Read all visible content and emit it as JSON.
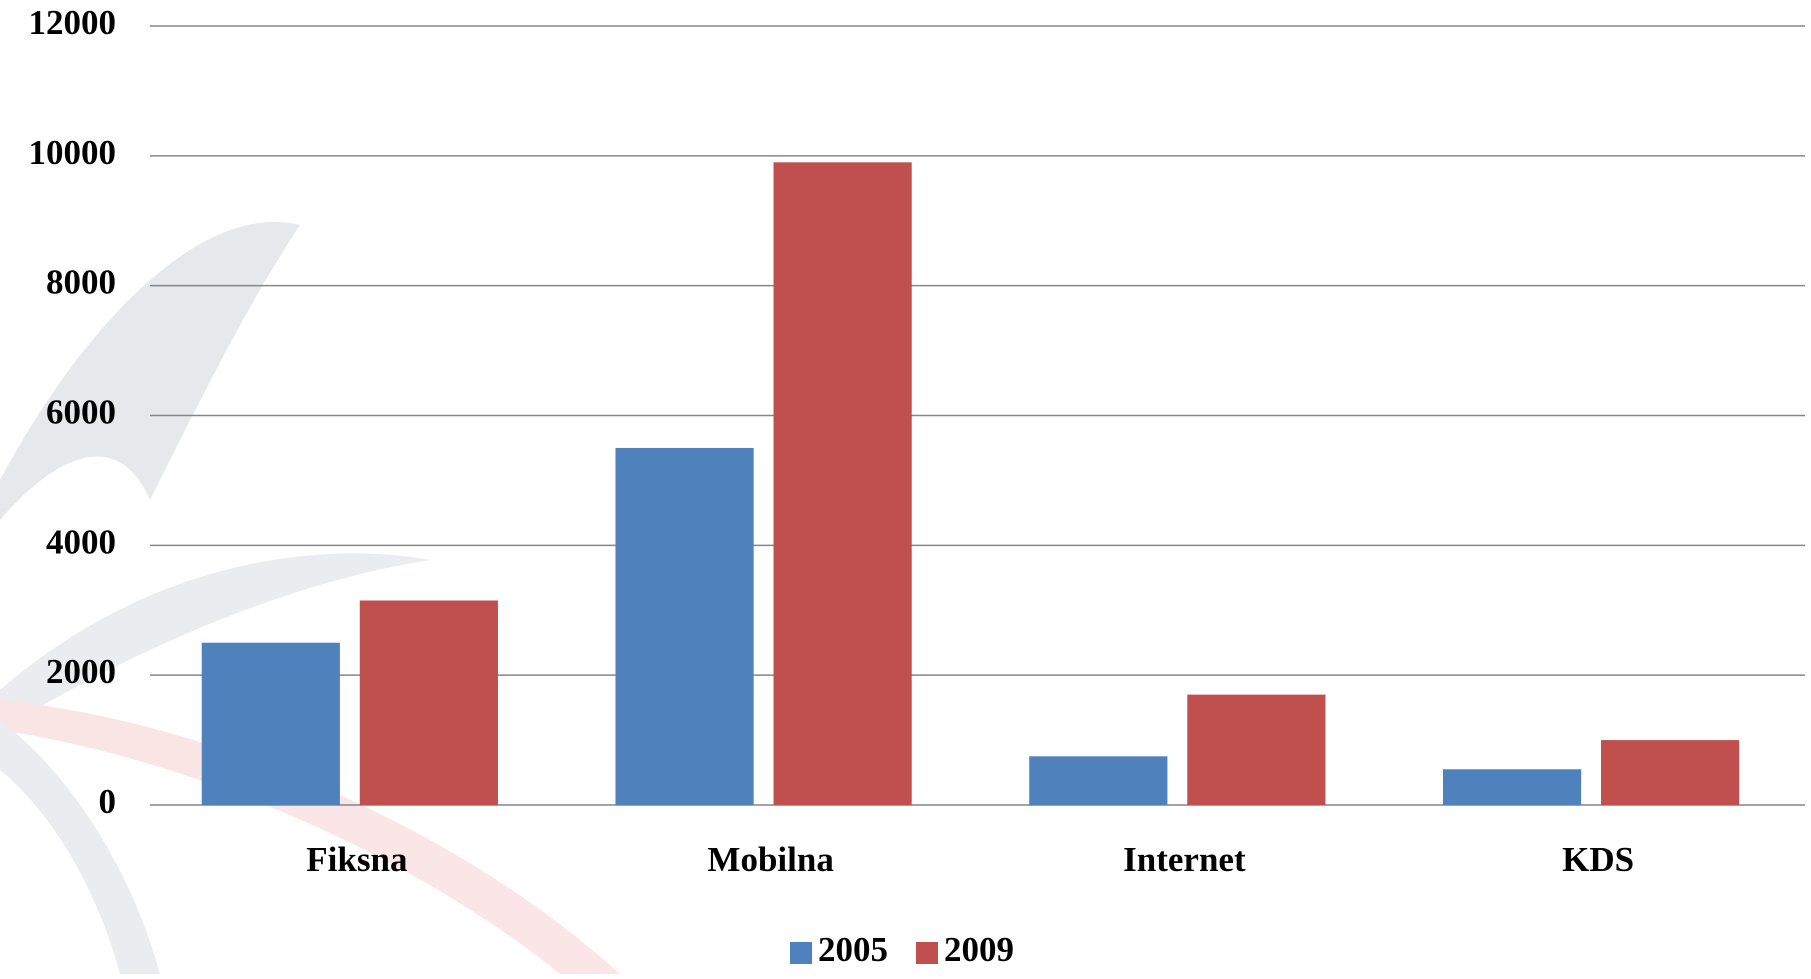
{
  "chart_data": {
    "type": "bar",
    "categories": [
      "Fiksna",
      "Mobilna",
      "Internet",
      "KDS"
    ],
    "series": [
      {
        "name": "2005",
        "color": "#4f81bd",
        "values": [
          2500,
          5500,
          750,
          550
        ]
      },
      {
        "name": "2009",
        "color": "#c0504d",
        "values": [
          3150,
          9900,
          1700,
          1000
        ]
      }
    ],
    "ylim": [
      0,
      12000
    ],
    "yticks": [
      0,
      2000,
      4000,
      6000,
      8000,
      10000,
      12000
    ],
    "grid": true,
    "legend": "bottom"
  }
}
